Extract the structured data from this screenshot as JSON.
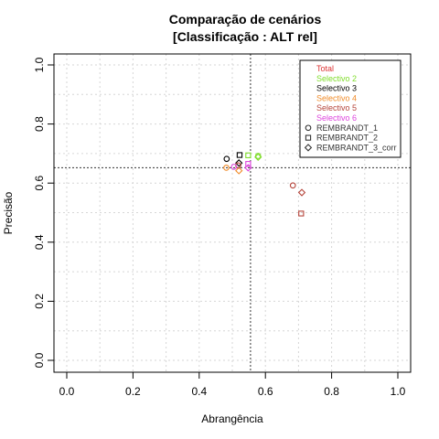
{
  "chart_data": {
    "type": "scatter",
    "title": [
      "Comparação de cenários",
      "[Classificação : ALT rel]"
    ],
    "xlabel": "Abrangência",
    "ylabel": "Precisão",
    "xlim": [
      0,
      1
    ],
    "ylim": [
      0,
      1
    ],
    "xticks": [
      0.0,
      0.2,
      0.4,
      0.6,
      0.8,
      1.0
    ],
    "yticks": [
      0.0,
      0.2,
      0.4,
      0.6,
      0.8,
      1.0
    ],
    "xtick_labels": [
      "0.0",
      "0.2",
      "0.4",
      "0.6",
      "0.8",
      "1.0"
    ],
    "ytick_labels": [
      "0.0",
      "0.2",
      "0.4",
      "0.6",
      "0.8",
      "1.0"
    ],
    "grid": true,
    "reference_lines": {
      "x": 0.555,
      "y": 0.652
    },
    "legend_position": "top-right",
    "series": [
      {
        "name": "Total",
        "color": "#dd3333",
        "points": []
      },
      {
        "name": "Selectivo 2",
        "color": "#7fdd2a",
        "points": [
          {
            "x": 0.578,
            "y": 0.692,
            "marker": "circle"
          },
          {
            "x": 0.578,
            "y": 0.688,
            "marker": "diamond"
          },
          {
            "x": 0.548,
            "y": 0.694,
            "marker": "square"
          }
        ]
      },
      {
        "name": "Selectivo 3",
        "color": "#000000",
        "points": [
          {
            "x": 0.483,
            "y": 0.682,
            "marker": "circle"
          },
          {
            "x": 0.522,
            "y": 0.695,
            "marker": "square"
          },
          {
            "x": 0.52,
            "y": 0.668,
            "marker": "diamond"
          }
        ]
      },
      {
        "name": "Selectivo 4",
        "color": "#f08c2a",
        "points": [
          {
            "x": 0.482,
            "y": 0.652,
            "marker": "circle"
          },
          {
            "x": 0.52,
            "y": 0.642,
            "marker": "diamond"
          }
        ]
      },
      {
        "name": "Selectivo 5",
        "color": "#b5443a",
        "points": [
          {
            "x": 0.683,
            "y": 0.592,
            "marker": "circle"
          },
          {
            "x": 0.71,
            "y": 0.568,
            "marker": "diamond"
          },
          {
            "x": 0.708,
            "y": 0.497,
            "marker": "square"
          },
          {
            "x": 0.518,
            "y": 0.66,
            "marker": "circle"
          }
        ]
      },
      {
        "name": "Selectivo 6",
        "color": "#dd44dd",
        "points": [
          {
            "x": 0.548,
            "y": 0.665,
            "marker": "square"
          },
          {
            "x": 0.548,
            "y": 0.652,
            "marker": "diamond"
          },
          {
            "x": 0.505,
            "y": 0.655,
            "marker": "circle"
          }
        ]
      }
    ],
    "legend": [
      {
        "label": "Total",
        "color": "#dd3333",
        "marker": "none"
      },
      {
        "label": "Selectivo 2",
        "color": "#7fdd2a",
        "marker": "none"
      },
      {
        "label": "Selectivo 3",
        "color": "#000000",
        "marker": "none"
      },
      {
        "label": "Selectivo 4",
        "color": "#f08c2a",
        "marker": "none"
      },
      {
        "label": "Selectivo 5",
        "color": "#b5443a",
        "marker": "none"
      },
      {
        "label": "Selectivo 6",
        "color": "#dd44dd",
        "marker": "none"
      },
      {
        "label": "REMBRANDT_1",
        "color": "#333333",
        "marker": "circle"
      },
      {
        "label": "REMBRANDT_2",
        "color": "#333333",
        "marker": "square"
      },
      {
        "label": "REMBRANDT_3_corr",
        "color": "#333333",
        "marker": "diamond"
      }
    ]
  }
}
